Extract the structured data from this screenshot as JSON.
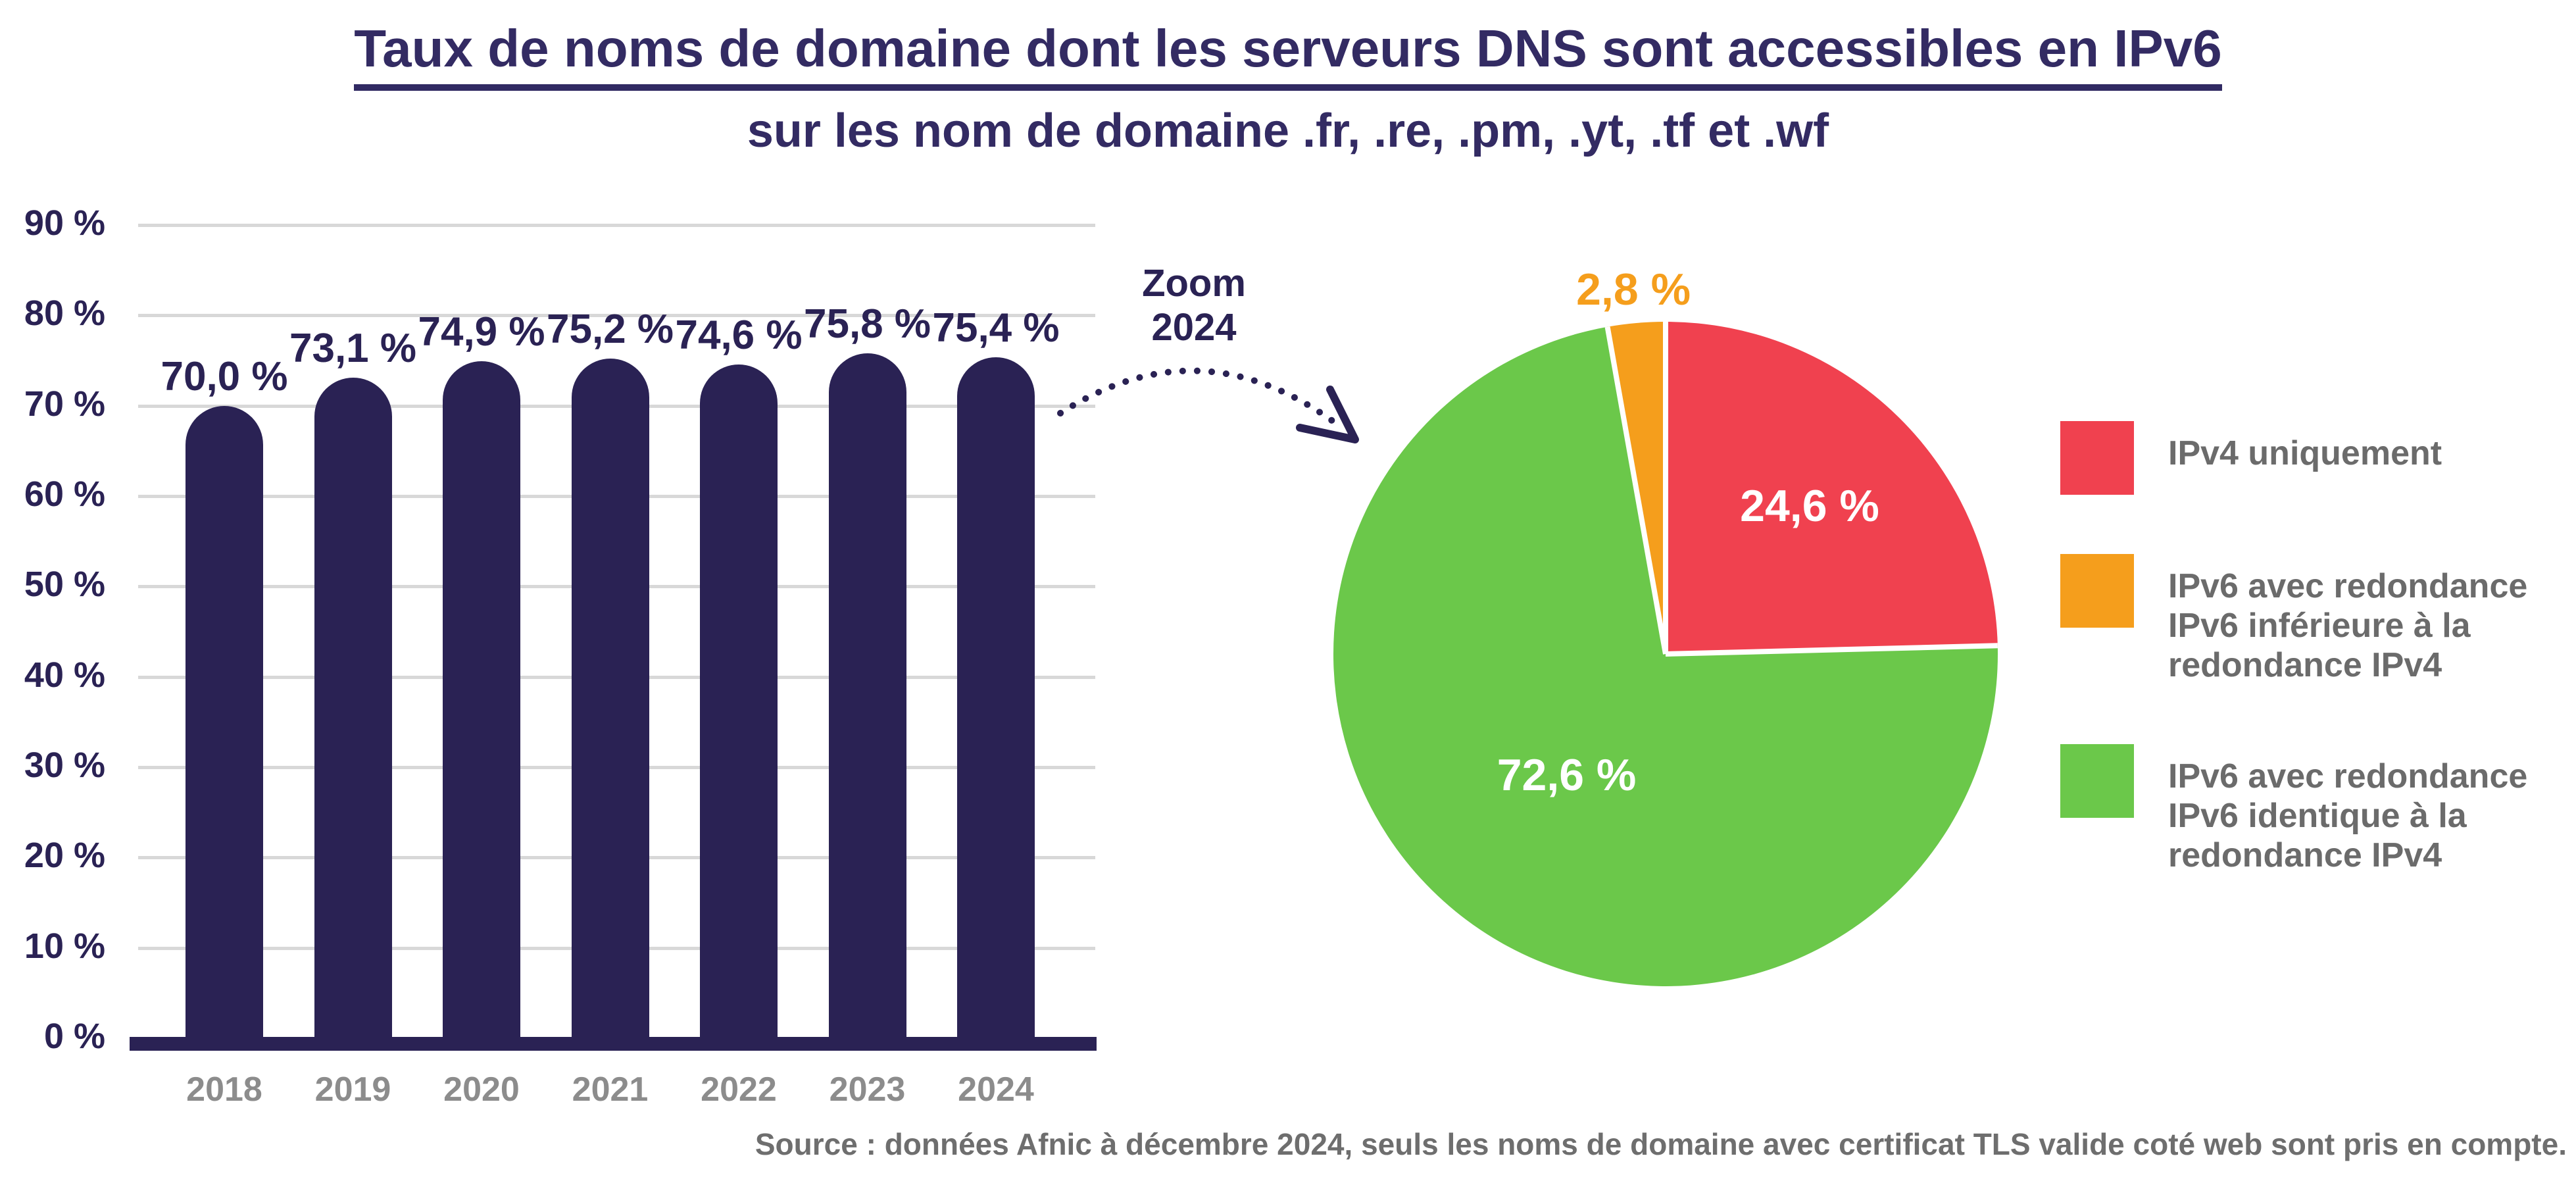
{
  "page": {
    "background": "#FFFFFF"
  },
  "header": {
    "title_line1": "Taux de noms de domaine dont les serveurs DNS sont accessibles en IPv6",
    "title_line2": "sur les nom de domaine .fr, .re, .pm, .yt, .tf et .wf"
  },
  "annotation": {
    "line1": "Zoom",
    "line2": "2024"
  },
  "source": "Source : données Afnic à décembre 2024, seuls les noms de domaine avec certificat TLS valide coté web sont pris en compte.",
  "colors": {
    "navy": "#2A2254",
    "title_indigo": "#332B63",
    "red": "#F0414F",
    "orange": "#F59E1C",
    "green": "#6BC84A",
    "gridline": "#D8D8D8",
    "year_gray": "#8C8C8C",
    "legend_gray": "#6B6B6B",
    "source_gray": "#6E6E6E"
  },
  "chart_data": [
    {
      "type": "bar",
      "title": "Taux de noms de domaine dont les serveurs DNS sont accessibles en IPv6 sur les nom de domaine .fr, .re, .pm, .yt, .tf et .wf",
      "categories": [
        "2018",
        "2019",
        "2020",
        "2021",
        "2022",
        "2023",
        "2024"
      ],
      "values": [
        70.0,
        73.1,
        74.9,
        75.2,
        74.6,
        75.8,
        75.4
      ],
      "value_labels": [
        "70,0 %",
        "73,1 %",
        "74,9 %",
        "75,2 %",
        "74,6 %",
        "75,8 %",
        "75,4 %"
      ],
      "y_ticks": [
        "0 %",
        "10 %",
        "20 %",
        "30 %",
        "40 %",
        "50 %",
        "60 %",
        "70 %",
        "80 %",
        "90 %"
      ],
      "ylim": [
        0,
        90
      ],
      "grid": true,
      "bar_color": "#2A2254"
    },
    {
      "type": "pie",
      "year": "2024",
      "start_angle": "top",
      "direction": "clockwise",
      "slices": [
        {
          "label": "IPv4 uniquement",
          "value": 24.6,
          "display": "24,6 %",
          "color": "#F0414F",
          "text_color": "#FFFFFF"
        },
        {
          "label": "IPv6 avec redondance IPv6 identique à la redondance IPv4",
          "value": 72.6,
          "display": "72,6 %",
          "color": "#6BC84A",
          "text_color": "#FFFFFF"
        },
        {
          "label": "IPv6 avec redondance IPv6 inférieure à la redondance IPv4",
          "value": 2.8,
          "display": "2,8 %",
          "color": "#F59E1C",
          "text_color": "#F59E1C"
        }
      ]
    }
  ],
  "legend": {
    "items": [
      {
        "label": "IPv4 uniquement",
        "color": "#F0414F"
      },
      {
        "label": "IPv6 avec redondance IPv6 inférieure à la redondance IPv4",
        "color": "#F59E1C"
      },
      {
        "label": "IPv6 avec redondance IPv6 identique à la redondance IPv4",
        "color": "#6BC84A"
      }
    ]
  }
}
